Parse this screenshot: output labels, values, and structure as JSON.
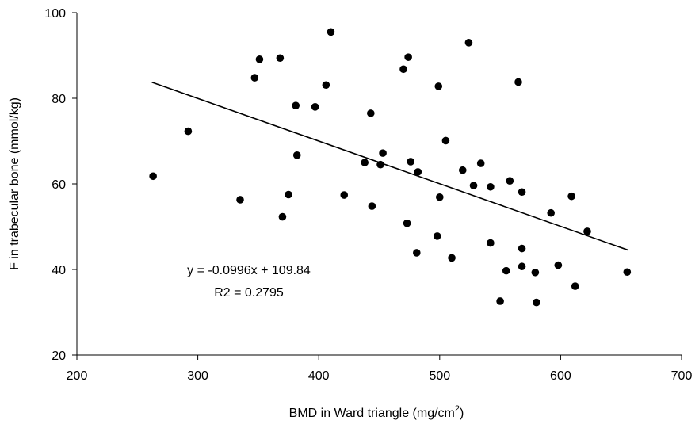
{
  "chart_data": {
    "type": "scatter",
    "xlabel": "BMD in Ward triangle (mg/cm",
    "xlabel_sup": "2",
    "xlabel_end": ")",
    "ylabel": "F in trabecular bone (mmol/kg)",
    "xlim": [
      200,
      700
    ],
    "ylim": [
      20,
      100
    ],
    "x_ticks": [
      200,
      300,
      400,
      500,
      600,
      700
    ],
    "y_ticks": [
      20,
      40,
      60,
      80,
      100
    ],
    "grid": false,
    "legend": "none",
    "annotations": {
      "equation": "y = -0.0996x + 109.84",
      "r2": "R2 = 0.2795"
    },
    "trendline": {
      "slope": -0.0996,
      "intercept": 109.84,
      "x_range": [
        262,
        656
      ]
    },
    "points": [
      {
        "x": 263,
        "y": 61.8
      },
      {
        "x": 292,
        "y": 72.3
      },
      {
        "x": 335,
        "y": 56.3
      },
      {
        "x": 347,
        "y": 84.8
      },
      {
        "x": 351,
        "y": 89.1
      },
      {
        "x": 368,
        "y": 89.4
      },
      {
        "x": 370,
        "y": 52.3
      },
      {
        "x": 375,
        "y": 57.5
      },
      {
        "x": 381,
        "y": 78.3
      },
      {
        "x": 382,
        "y": 66.7
      },
      {
        "x": 397,
        "y": 78.0
      },
      {
        "x": 406,
        "y": 83.1
      },
      {
        "x": 410,
        "y": 95.5
      },
      {
        "x": 421,
        "y": 57.4
      },
      {
        "x": 438,
        "y": 65.0
      },
      {
        "x": 443,
        "y": 76.5
      },
      {
        "x": 444,
        "y": 54.8
      },
      {
        "x": 451,
        "y": 64.5
      },
      {
        "x": 453,
        "y": 67.2
      },
      {
        "x": 470,
        "y": 86.8
      },
      {
        "x": 473,
        "y": 50.8
      },
      {
        "x": 474,
        "y": 89.6
      },
      {
        "x": 476,
        "y": 65.2
      },
      {
        "x": 481,
        "y": 43.9
      },
      {
        "x": 482,
        "y": 62.8
      },
      {
        "x": 498,
        "y": 47.8
      },
      {
        "x": 499,
        "y": 82.8
      },
      {
        "x": 500,
        "y": 56.9
      },
      {
        "x": 505,
        "y": 70.1
      },
      {
        "x": 510,
        "y": 42.7
      },
      {
        "x": 519,
        "y": 63.2
      },
      {
        "x": 524,
        "y": 93.0
      },
      {
        "x": 528,
        "y": 59.6
      },
      {
        "x": 534,
        "y": 64.8
      },
      {
        "x": 542,
        "y": 59.3
      },
      {
        "x": 542,
        "y": 46.2
      },
      {
        "x": 550,
        "y": 32.6
      },
      {
        "x": 555,
        "y": 39.7
      },
      {
        "x": 558,
        "y": 60.7
      },
      {
        "x": 565,
        "y": 83.8
      },
      {
        "x": 568,
        "y": 58.1
      },
      {
        "x": 568,
        "y": 44.9
      },
      {
        "x": 568,
        "y": 40.7
      },
      {
        "x": 579,
        "y": 39.3
      },
      {
        "x": 580,
        "y": 32.3
      },
      {
        "x": 592,
        "y": 53.2
      },
      {
        "x": 598,
        "y": 41.0
      },
      {
        "x": 609,
        "y": 57.1
      },
      {
        "x": 612,
        "y": 36.1
      },
      {
        "x": 622,
        "y": 48.9
      },
      {
        "x": 655,
        "y": 39.4
      }
    ]
  }
}
